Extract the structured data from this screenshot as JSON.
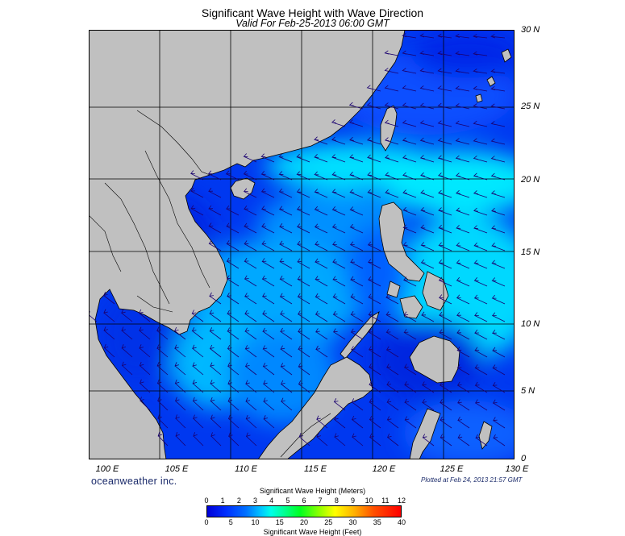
{
  "title": "Significant Wave Height with Wave Direction",
  "subtitle": "Valid For Feb-25-2013 06:00 GMT",
  "latitude_labels": [
    "30 N",
    "25 N",
    "20 N",
    "15 N",
    "10 N",
    "5 N",
    "0"
  ],
  "longitude_labels": [
    "100 E",
    "105 E",
    "110 E",
    "115 E",
    "120 E",
    "125 E",
    "130 E"
  ],
  "brand": "oceanweather inc.",
  "plotted": "Plotted at Feb 24, 2013 21:57 GMT",
  "colorbar": {
    "meters_title": "Significant Wave Height (Meters)",
    "feet_title": "Significant Wave Height (Feet)",
    "meters_ticks": [
      "0",
      "1",
      "2",
      "3",
      "4",
      "5",
      "6",
      "7",
      "8",
      "9",
      "10",
      "11",
      "12"
    ],
    "feet_ticks": [
      "0",
      "5",
      "10",
      "15",
      "20",
      "25",
      "30",
      "35",
      "40"
    ]
  },
  "colors": {
    "land": "#c0c0c0",
    "deep_blue": "#0000d8",
    "blue": "#0040ff",
    "light_blue": "#0090ff",
    "cyan": "#00e8ff",
    "arrow": "#1a0070"
  }
}
